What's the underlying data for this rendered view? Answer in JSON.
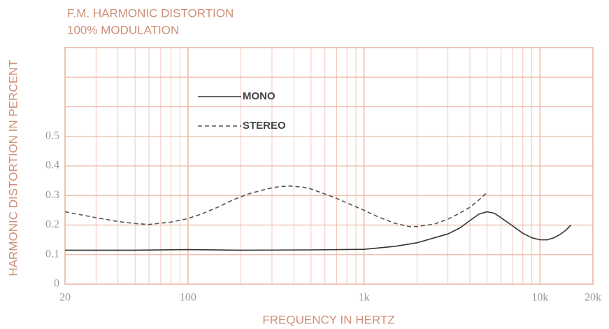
{
  "chart_data": {
    "type": "line",
    "title": "F.M. HARMONIC DISTORTION",
    "subtitle": "100% MODULATION",
    "x_label": "FREQUENCY IN HERTZ",
    "y_label": "HARMONIC DISTORTION IN PERCENT",
    "xscale": "log",
    "xlim": [
      20,
      20000
    ],
    "xticks": [
      20,
      100,
      {
        "value": 1000,
        "label": "1k"
      },
      {
        "value": 10000,
        "label": "10k"
      },
      {
        "value": 20000,
        "label": "20k"
      }
    ],
    "ylim": [
      0,
      0.8
    ],
    "yticks": [
      0,
      0.1,
      0.2,
      0.3,
      0.4,
      0.5
    ],
    "ygrid_extra": [
      0.6,
      0.7,
      0.8
    ],
    "grid": true,
    "series": [
      {
        "name": "MONO",
        "color": "#333333",
        "dashed": false,
        "x": [
          20,
          50,
          100,
          200,
          500,
          1000,
          1500,
          2000,
          3000,
          3500,
          4000,
          4500,
          5000,
          5500,
          6000,
          7000,
          8000,
          9000,
          10000,
          11000,
          12000,
          13000,
          14000,
          15000
        ],
        "values": [
          0.115,
          0.115,
          0.117,
          0.115,
          0.116,
          0.118,
          0.128,
          0.14,
          0.17,
          0.19,
          0.215,
          0.237,
          0.245,
          0.24,
          0.225,
          0.197,
          0.172,
          0.157,
          0.15,
          0.15,
          0.157,
          0.168,
          0.182,
          0.2
        ]
      },
      {
        "name": "STEREO",
        "color": "#555555",
        "dashed": true,
        "x": [
          20,
          30,
          40,
          50,
          60,
          80,
          100,
          120,
          150,
          180,
          220,
          280,
          330,
          380,
          450,
          500,
          600,
          700,
          850,
          1000,
          1200,
          1500,
          1800,
          2000,
          2500,
          3000,
          3500,
          4000,
          4500,
          5000
        ],
        "values": [
          0.245,
          0.225,
          0.212,
          0.205,
          0.202,
          0.21,
          0.222,
          0.238,
          0.262,
          0.285,
          0.305,
          0.322,
          0.33,
          0.332,
          0.328,
          0.322,
          0.305,
          0.29,
          0.268,
          0.25,
          0.228,
          0.206,
          0.195,
          0.195,
          0.203,
          0.22,
          0.24,
          0.26,
          0.285,
          0.31
        ]
      }
    ]
  }
}
